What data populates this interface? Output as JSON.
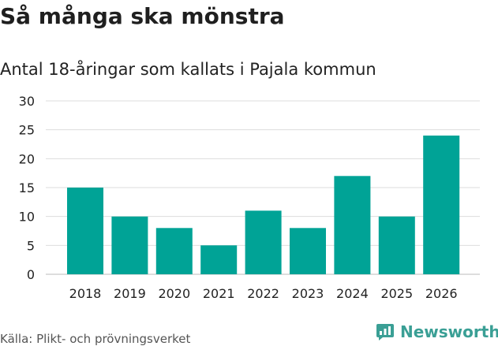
{
  "header": {
    "title": "Så många ska mönstra",
    "subtitle": "Antal 18-åringar som kallats i Pajala kommun"
  },
  "footer": {
    "source": "Källa: Plikt- och prövningsverket",
    "brand": "Newsworthy"
  },
  "colors": {
    "bar": "#00a396",
    "grid": "#dddddd",
    "brand": "#3a9f95"
  },
  "chart_data": {
    "type": "bar",
    "title": "Så många ska mönstra",
    "subtitle": "Antal 18-åringar som kallats i Pajala kommun",
    "categories": [
      "2018",
      "2019",
      "2020",
      "2021",
      "2022",
      "2023",
      "2024",
      "2025",
      "2026"
    ],
    "values": [
      15,
      10,
      8,
      5,
      11,
      8,
      17,
      10,
      24
    ],
    "xlabel": "",
    "ylabel": "",
    "ylim": [
      0,
      30
    ],
    "yticks": [
      0,
      5,
      10,
      15,
      20,
      25,
      30
    ],
    "grid": true,
    "legend": "none"
  }
}
